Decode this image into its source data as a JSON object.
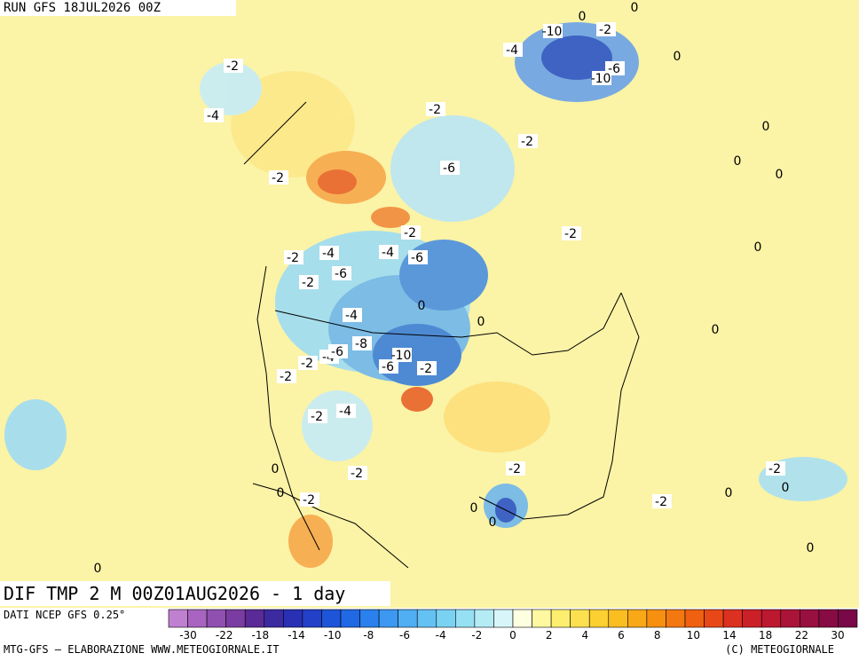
{
  "header": {
    "run": "RUN GFS 18JUL2026 00Z",
    "field": "DIF TMP 2 M 00Z01AUG2026 - 1 day"
  },
  "footer": {
    "source": "DATI NCEP GFS 0.25°",
    "credit": "MTG-GFS — ELABORAZIONE WWW.METEOGIORNALE.IT",
    "copyright": "(C) METEOGIORNALE"
  },
  "contour_labels": [
    "-2",
    "-4",
    "-2",
    "-2",
    "-4",
    "-2",
    "-6",
    "-4",
    "-8",
    "-2",
    "-4",
    "-6",
    "-2",
    "-2",
    "-4",
    "-6",
    "-10",
    "-2",
    "-6",
    "-2",
    "-4",
    "-2",
    "0",
    "0",
    "-2",
    "-2",
    "0",
    "0",
    "-2",
    "-2",
    "0",
    "0",
    "-6",
    "-10",
    "-2",
    "-4",
    "-6",
    "-10",
    "-2",
    "0",
    "0",
    "0",
    "0",
    "-2",
    "0",
    "0",
    "0",
    "0",
    "-2",
    "0",
    "0",
    "0",
    "0"
  ],
  "colorbar": {
    "ticks": [
      -30,
      -26,
      -22,
      -18,
      -14,
      -10,
      -8,
      -6,
      -4,
      -2,
      0,
      2,
      4,
      6,
      8,
      10,
      14,
      18,
      22,
      30
    ],
    "tick_labels_shown": [
      -30,
      -22,
      -18,
      -14,
      -10,
      -8,
      -6,
      -4,
      -2,
      0,
      2,
      4,
      6,
      8,
      10,
      14,
      18,
      22,
      30
    ],
    "colors": [
      "#c080d0",
      "#a864c0",
      "#9050b0",
      "#7a3ca0",
      "#5a2a96",
      "#3c2aa0",
      "#2a30b4",
      "#2240c8",
      "#1e55d8",
      "#2068e4",
      "#2a80ec",
      "#3c98f0",
      "#50aef2",
      "#64c2f2",
      "#7ad2f2",
      "#96e0f4",
      "#b4ecf6",
      "#d8f6fa",
      "#fefee0",
      "#fef8a0",
      "#fdee70",
      "#fce050",
      "#fcd030",
      "#fbbe20",
      "#f9a818",
      "#f79010",
      "#f47810",
      "#ef6010",
      "#e84818",
      "#dc3020",
      "#cc2028",
      "#bc1830",
      "#aa1438",
      "#981040",
      "#880c44",
      "#780848"
    ]
  }
}
